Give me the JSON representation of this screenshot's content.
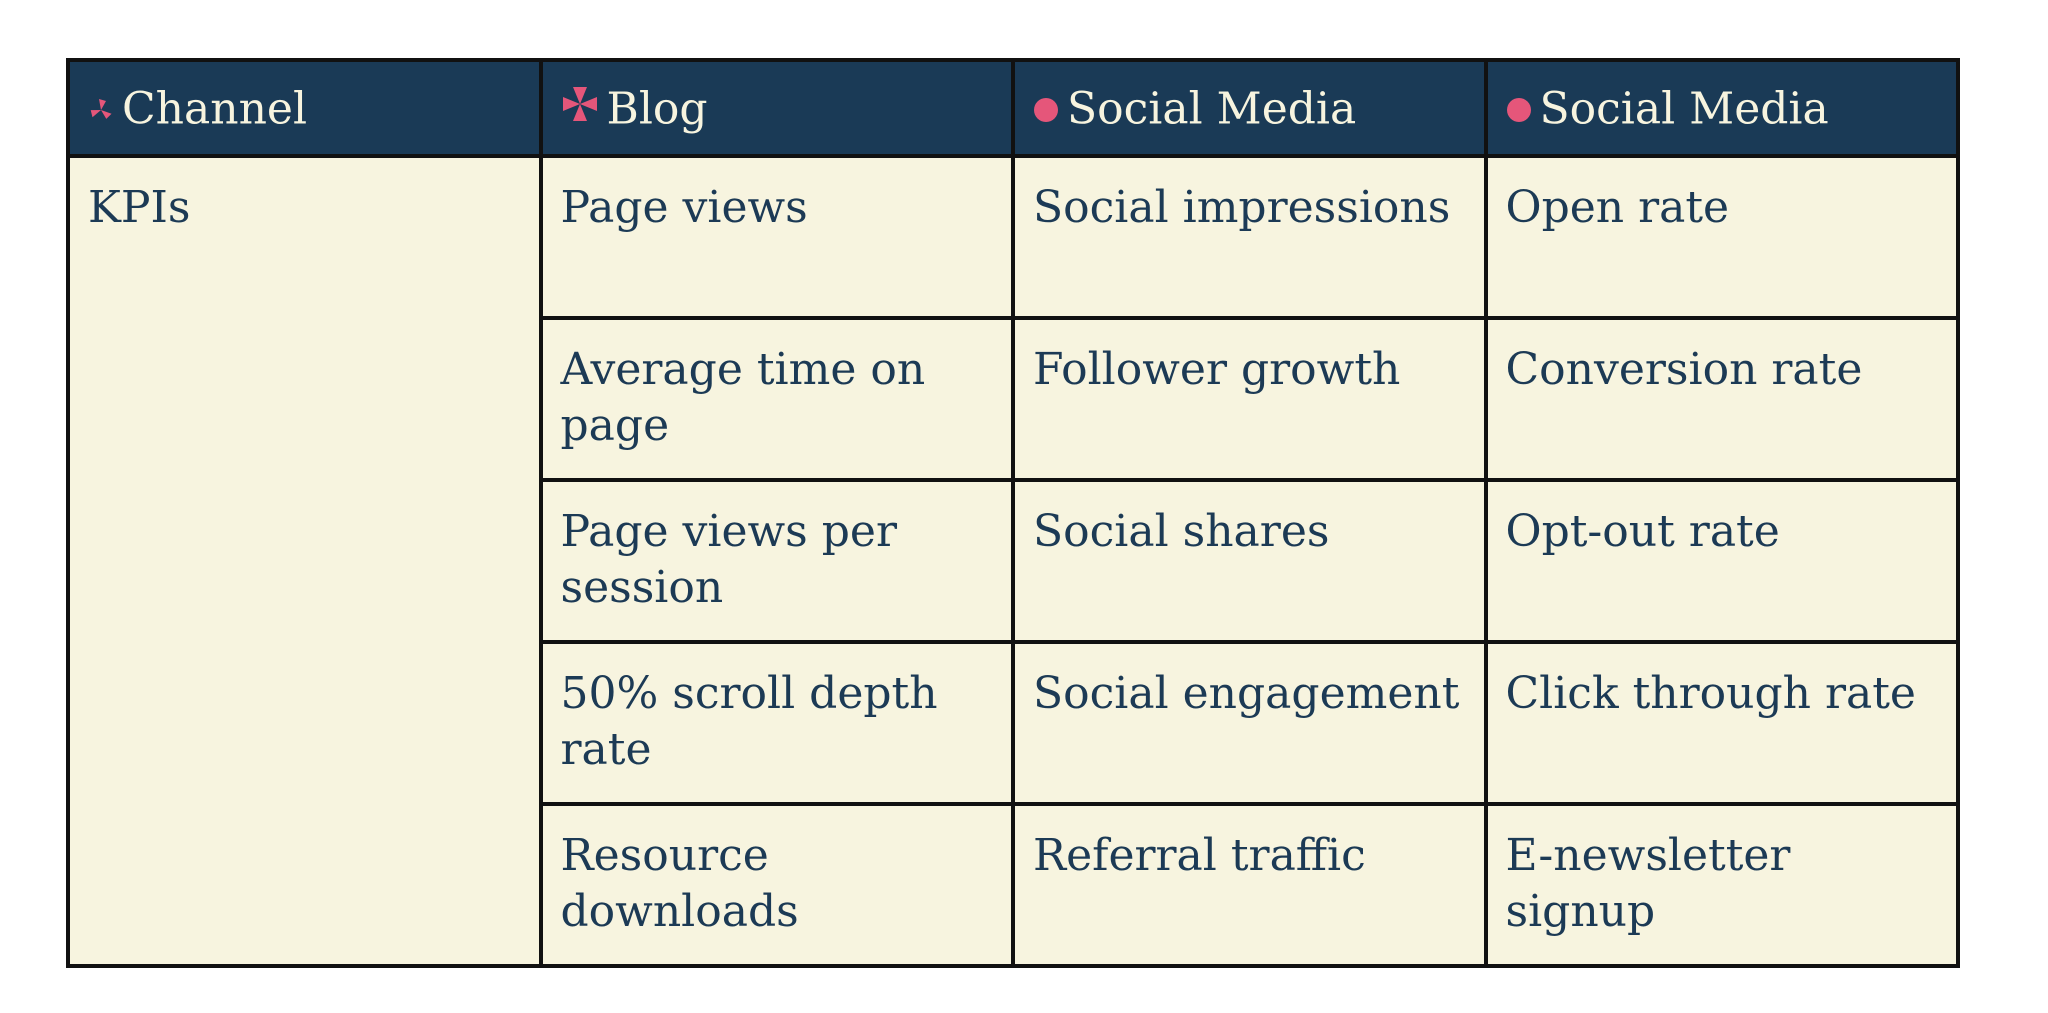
{
  "accent_color": "#e5567a",
  "header_bg": "#1a3a56",
  "cell_bg": "#f7f4df",
  "headers": [
    {
      "label": "Channel",
      "icon": "pinwheel-icon"
    },
    {
      "label": "Blog",
      "icon": "cross-icon"
    },
    {
      "label": "Social Media",
      "icon": "dot-icon"
    },
    {
      "label": "Social Media",
      "icon": "dot-icon"
    }
  ],
  "row_label": "KPIs",
  "rows": [
    [
      "Page views",
      "Social impressions",
      "Open rate"
    ],
    [
      "Average time on page",
      "Follower growth",
      "Conversion rate"
    ],
    [
      "Page views per session",
      "Social shares",
      "Opt-out rate"
    ],
    [
      "50% scroll depth rate",
      "Social engagement",
      "Click through rate"
    ],
    [
      "Resource downloads",
      "Referral traffic",
      "E-newsletter signup"
    ]
  ]
}
